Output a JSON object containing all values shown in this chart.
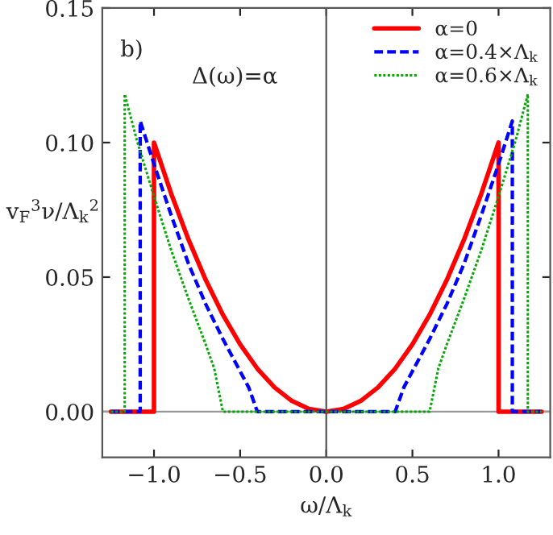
{
  "chart_data": {
    "type": "line",
    "xlabel": "ω/Λ$_{k}$",
    "ylabel": "v$_{F}$$^{3}$ν/Λ$_{k}$$^{2}$",
    "annotations": [
      "b)",
      "Δ(ω)=α"
    ],
    "xlim": [
      -1.3,
      1.3
    ],
    "ylim": [
      -0.017,
      0.15
    ],
    "xticks": [
      {
        "value": -1.0,
        "label": "−1.0"
      },
      {
        "value": -0.5,
        "label": "−0.5"
      },
      {
        "value": 0.0,
        "label": "0.0"
      },
      {
        "value": 0.5,
        "label": "0.5"
      },
      {
        "value": 1.0,
        "label": "1.0"
      }
    ],
    "yticks": [
      {
        "value": 0.0,
        "label": "0.00"
      },
      {
        "value": 0.05,
        "label": "0.05"
      },
      {
        "value": 0.1,
        "label": "0.10"
      },
      {
        "value": 0.15,
        "label": "0.15"
      }
    ],
    "ref_lines": [
      {
        "axis": "x",
        "value": 0,
        "color": "#555555"
      },
      {
        "axis": "y",
        "value": 0,
        "color": "#999999"
      }
    ],
    "grid": false,
    "legend": "top right",
    "marker": "none",
    "series": [
      {
        "name": "α=0",
        "color": "#ff0000",
        "line_style": "solid",
        "x": [
          -1.25,
          -1.0,
          -1.0,
          -0.9,
          -0.8,
          -0.7,
          -0.6,
          -0.5,
          -0.4,
          -0.3,
          -0.2,
          -0.1,
          0.0,
          0.1,
          0.2,
          0.3,
          0.4,
          0.5,
          0.6,
          0.7,
          0.8,
          0.9,
          1.0,
          1.0,
          1.25
        ],
        "values": [
          0,
          0,
          0.1,
          0.081,
          0.064,
          0.049,
          0.036,
          0.025,
          0.016,
          0.009,
          0.004,
          0.001,
          0,
          0.001,
          0.004,
          0.009,
          0.016,
          0.025,
          0.036,
          0.049,
          0.064,
          0.081,
          0.1,
          0,
          0
        ]
      },
      {
        "name": "α=0.4×Λ$_{k}$",
        "color": "#0000ff",
        "line_style": "dashed",
        "x": [
          -1.25,
          -1.08,
          -1.08,
          -1.0,
          -0.9,
          -0.8,
          -0.7,
          -0.6,
          -0.5,
          -0.45,
          -0.4,
          0.4,
          0.45,
          0.5,
          0.6,
          0.7,
          0.8,
          0.9,
          1.0,
          1.08,
          1.08,
          1.25
        ],
        "values": [
          0,
          0,
          0.108,
          0.092,
          0.073,
          0.055,
          0.04,
          0.027,
          0.015,
          0.009,
          0,
          0,
          0.009,
          0.015,
          0.027,
          0.04,
          0.055,
          0.073,
          0.092,
          0.108,
          0,
          0
        ]
      },
      {
        "name": "α=0.6×Λ$_{k}$",
        "color": "#00aa00",
        "line_style": "dotted",
        "x": [
          -1.25,
          -1.17,
          -1.17,
          -1.1,
          -1.0,
          -0.9,
          -0.8,
          -0.7,
          -0.65,
          -0.6,
          0.6,
          0.65,
          0.7,
          0.8,
          0.9,
          1.0,
          1.1,
          1.17,
          1.17,
          1.25
        ],
        "values": [
          0,
          0,
          0.118,
          0.101,
          0.08,
          0.06,
          0.042,
          0.025,
          0.016,
          0,
          0,
          0.016,
          0.025,
          0.042,
          0.06,
          0.08,
          0.101,
          0.118,
          0,
          0
        ]
      }
    ]
  }
}
